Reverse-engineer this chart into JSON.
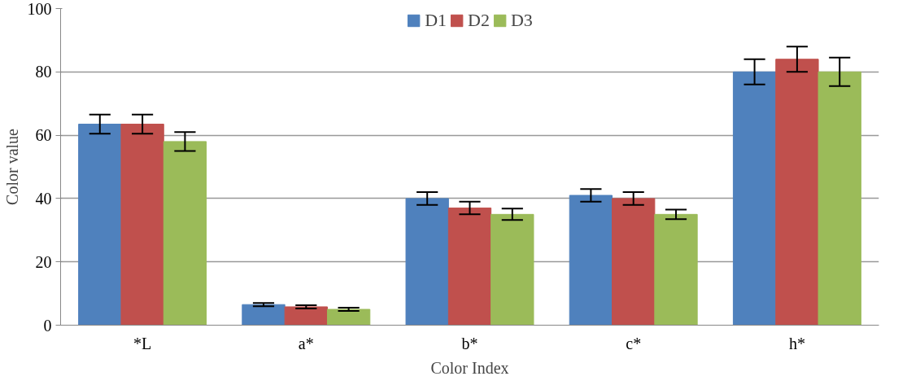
{
  "chart_data": {
    "type": "bar",
    "xlabel": "Color Index",
    "ylabel": "Color value",
    "categories": [
      "*L",
      "a*",
      "b*",
      "c*",
      "h*"
    ],
    "series": [
      {
        "name": "D1",
        "color": "#4f81bd",
        "values": [
          63.5,
          6.5,
          40,
          41,
          80
        ],
        "errors": [
          3,
          0.5,
          2,
          2,
          4
        ]
      },
      {
        "name": "D2",
        "color": "#c0504d",
        "values": [
          63.5,
          5.8,
          37,
          40,
          84
        ],
        "errors": [
          3,
          0.5,
          2,
          2,
          4
        ]
      },
      {
        "name": "D3",
        "color": "#9bbb59",
        "values": [
          58,
          5,
          35,
          35,
          80
        ],
        "errors": [
          3,
          0.5,
          1.8,
          1.5,
          4.5
        ]
      }
    ],
    "ylim": [
      0,
      100
    ],
    "yticks": [
      0,
      20,
      40,
      60,
      80,
      100
    ],
    "grid": "y",
    "legend": "top"
  }
}
